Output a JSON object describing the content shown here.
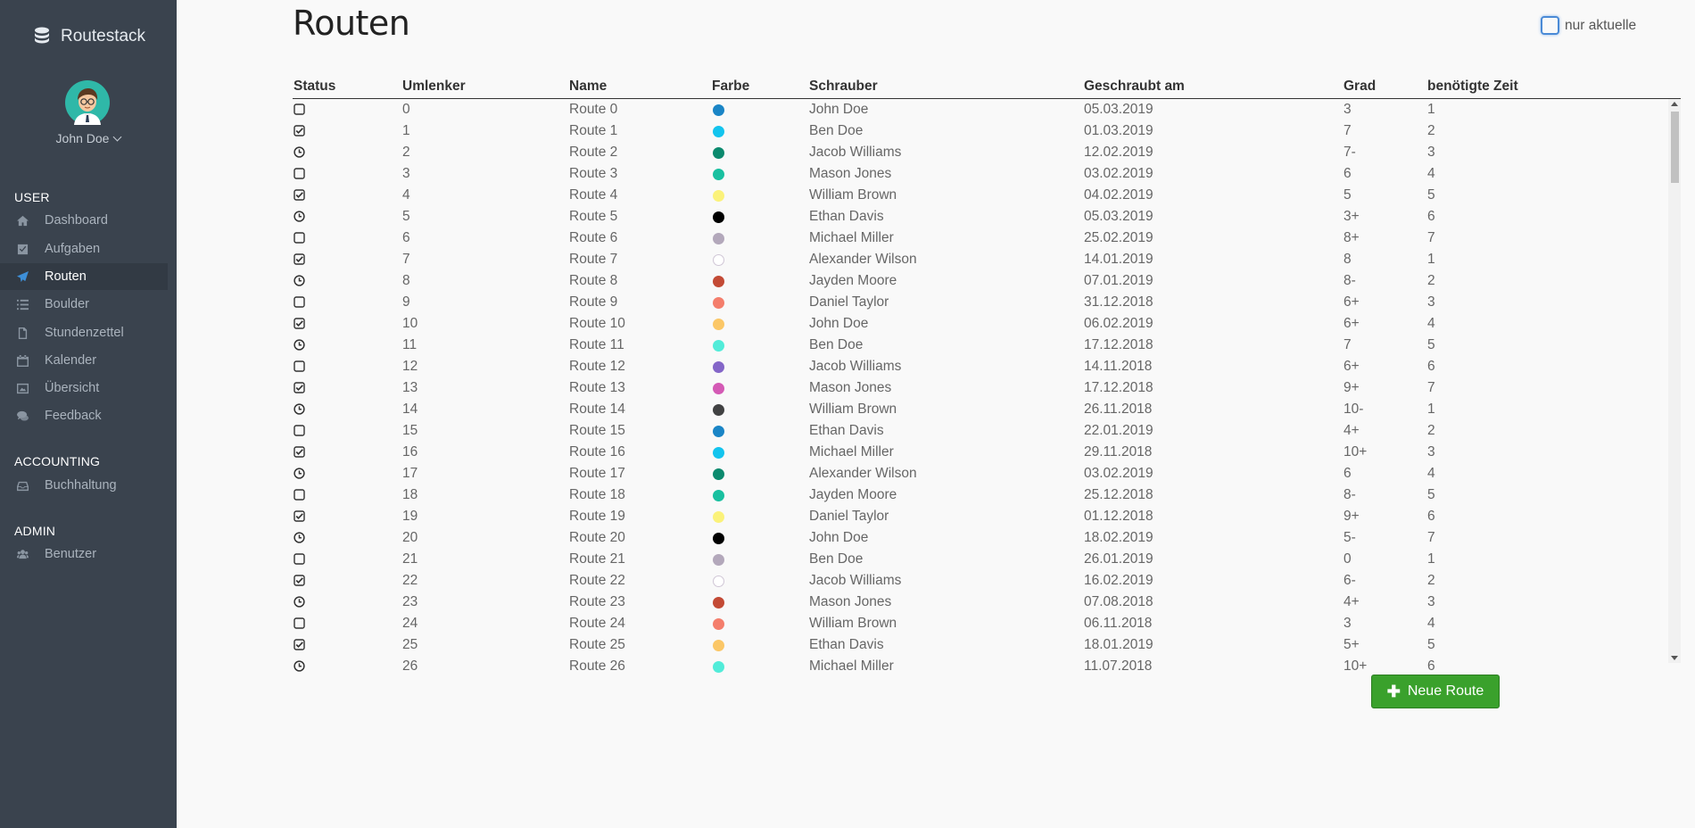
{
  "app": {
    "name": "Routestack"
  },
  "user": {
    "name": "John Doe"
  },
  "sidebar": {
    "sections": [
      {
        "heading": "USER",
        "items": [
          {
            "label": "Dashboard",
            "icon": "home-icon"
          },
          {
            "label": "Aufgaben",
            "icon": "check-square-icon"
          },
          {
            "label": "Routen",
            "icon": "paper-plane-icon",
            "active": true
          },
          {
            "label": "Boulder",
            "icon": "list-icon"
          },
          {
            "label": "Stundenzettel",
            "icon": "file-pdf-icon"
          },
          {
            "label": "Kalender",
            "icon": "calendar-icon"
          },
          {
            "label": "Übersicht",
            "icon": "image-icon"
          },
          {
            "label": "Feedback",
            "icon": "comments-icon"
          }
        ]
      },
      {
        "heading": "ACCOUNTING",
        "items": [
          {
            "label": "Buchhaltung",
            "icon": "inbox-icon"
          }
        ]
      },
      {
        "heading": "ADMIN",
        "items": [
          {
            "label": "Benutzer",
            "icon": "users-icon"
          }
        ]
      }
    ]
  },
  "main": {
    "title": "Routen",
    "filter_label": "nur aktuelle",
    "columns": [
      "Status",
      "Umlenker",
      "Name",
      "Farbe",
      "Schrauber",
      "Geschraubt am",
      "Grad",
      "benötigte Zeit"
    ],
    "rows": [
      {
        "status": "open",
        "umlenker": "0",
        "name": "Route 0",
        "color": "#1a85c6",
        "schrauber": "John Doe",
        "date": "05.03.2019",
        "grad": "3",
        "zeit": "1"
      },
      {
        "status": "done",
        "umlenker": "1",
        "name": "Route 1",
        "color": "#13c4ee",
        "schrauber": "Ben Doe",
        "date": "01.03.2019",
        "grad": "7",
        "zeit": "2"
      },
      {
        "status": "clock",
        "umlenker": "2",
        "name": "Route 2",
        "color": "#0b8a6e",
        "schrauber": "Jacob Williams",
        "date": "12.02.2019",
        "grad": "7-",
        "zeit": "3"
      },
      {
        "status": "open",
        "umlenker": "3",
        "name": "Route 3",
        "color": "#19c0a0",
        "schrauber": "Mason Jones",
        "date": "03.02.2019",
        "grad": "6",
        "zeit": "4"
      },
      {
        "status": "done",
        "umlenker": "4",
        "name": "Route 4",
        "color": "#fbf27a",
        "schrauber": "William Brown",
        "date": "04.02.2019",
        "grad": "5",
        "zeit": "5"
      },
      {
        "status": "clock",
        "umlenker": "5",
        "name": "Route 5",
        "color": "#000000",
        "schrauber": "Ethan Davis",
        "date": "05.03.2019",
        "grad": "3+",
        "zeit": "6"
      },
      {
        "status": "open",
        "umlenker": "6",
        "name": "Route 6",
        "color": "#b3a8bb",
        "schrauber": "Michael Miller",
        "date": "25.02.2019",
        "grad": "8+",
        "zeit": "7"
      },
      {
        "status": "done",
        "umlenker": "7",
        "name": "Route 7",
        "color": "#ffffff",
        "schrauber": "Alexander Wilson",
        "date": "14.01.2019",
        "grad": "8",
        "zeit": "1"
      },
      {
        "status": "clock",
        "umlenker": "8",
        "name": "Route 8",
        "color": "#c34a35",
        "schrauber": "Jayden Moore",
        "date": "07.01.2019",
        "grad": "8-",
        "zeit": "2"
      },
      {
        "status": "open",
        "umlenker": "9",
        "name": "Route 9",
        "color": "#f47e6c",
        "schrauber": "Daniel Taylor",
        "date": "31.12.2018",
        "grad": "6+",
        "zeit": "3"
      },
      {
        "status": "done",
        "umlenker": "10",
        "name": "Route 10",
        "color": "#fbc767",
        "schrauber": "John Doe",
        "date": "06.02.2019",
        "grad": "6+",
        "zeit": "4"
      },
      {
        "status": "clock",
        "umlenker": "11",
        "name": "Route 11",
        "color": "#52ecd9",
        "schrauber": "Ben Doe",
        "date": "17.12.2018",
        "grad": "7",
        "zeit": "5"
      },
      {
        "status": "open",
        "umlenker": "12",
        "name": "Route 12",
        "color": "#8466c8",
        "schrauber": "Jacob Williams",
        "date": "14.11.2018",
        "grad": "6+",
        "zeit": "6"
      },
      {
        "status": "done",
        "umlenker": "13",
        "name": "Route 13",
        "color": "#d45ab5",
        "schrauber": "Mason Jones",
        "date": "17.12.2018",
        "grad": "9+",
        "zeit": "7"
      },
      {
        "status": "clock",
        "umlenker": "14",
        "name": "Route 14",
        "color": "#414243",
        "schrauber": "William Brown",
        "date": "26.11.2018",
        "grad": "10-",
        "zeit": "1"
      },
      {
        "status": "open",
        "umlenker": "15",
        "name": "Route 15",
        "color": "#1a85c6",
        "schrauber": "Ethan Davis",
        "date": "22.01.2019",
        "grad": "4+",
        "zeit": "2"
      },
      {
        "status": "done",
        "umlenker": "16",
        "name": "Route 16",
        "color": "#13c4ee",
        "schrauber": "Michael Miller",
        "date": "29.11.2018",
        "grad": "10+",
        "zeit": "3"
      },
      {
        "status": "clock",
        "umlenker": "17",
        "name": "Route 17",
        "color": "#0b8a6e",
        "schrauber": "Alexander Wilson",
        "date": "03.02.2019",
        "grad": "6",
        "zeit": "4"
      },
      {
        "status": "open",
        "umlenker": "18",
        "name": "Route 18",
        "color": "#19c0a0",
        "schrauber": "Jayden Moore",
        "date": "25.12.2018",
        "grad": "8-",
        "zeit": "5"
      },
      {
        "status": "done",
        "umlenker": "19",
        "name": "Route 19",
        "color": "#fbf27a",
        "schrauber": "Daniel Taylor",
        "date": "01.12.2018",
        "grad": "9+",
        "zeit": "6"
      },
      {
        "status": "clock",
        "umlenker": "20",
        "name": "Route 20",
        "color": "#000000",
        "schrauber": "John Doe",
        "date": "18.02.2019",
        "grad": "5-",
        "zeit": "7"
      },
      {
        "status": "open",
        "umlenker": "21",
        "name": "Route 21",
        "color": "#b3a8bb",
        "schrauber": "Ben Doe",
        "date": "26.01.2019",
        "grad": "0",
        "zeit": "1"
      },
      {
        "status": "done",
        "umlenker": "22",
        "name": "Route 22",
        "color": "#ffffff",
        "schrauber": "Jacob Williams",
        "date": "16.02.2019",
        "grad": "6-",
        "zeit": "2"
      },
      {
        "status": "clock",
        "umlenker": "23",
        "name": "Route 23",
        "color": "#c34a35",
        "schrauber": "Mason Jones",
        "date": "07.08.2018",
        "grad": "4+",
        "zeit": "3"
      },
      {
        "status": "open",
        "umlenker": "24",
        "name": "Route 24",
        "color": "#f47e6c",
        "schrauber": "William Brown",
        "date": "06.11.2018",
        "grad": "3",
        "zeit": "4"
      },
      {
        "status": "done",
        "umlenker": "25",
        "name": "Route 25",
        "color": "#fbc767",
        "schrauber": "Ethan Davis",
        "date": "18.01.2019",
        "grad": "5+",
        "zeit": "5"
      },
      {
        "status": "clock",
        "umlenker": "26",
        "name": "Route 26",
        "color": "#52ecd9",
        "schrauber": "Michael Miller",
        "date": "11.07.2018",
        "grad": "10+",
        "zeit": "6"
      }
    ],
    "new_button_label": "Neue Route"
  }
}
